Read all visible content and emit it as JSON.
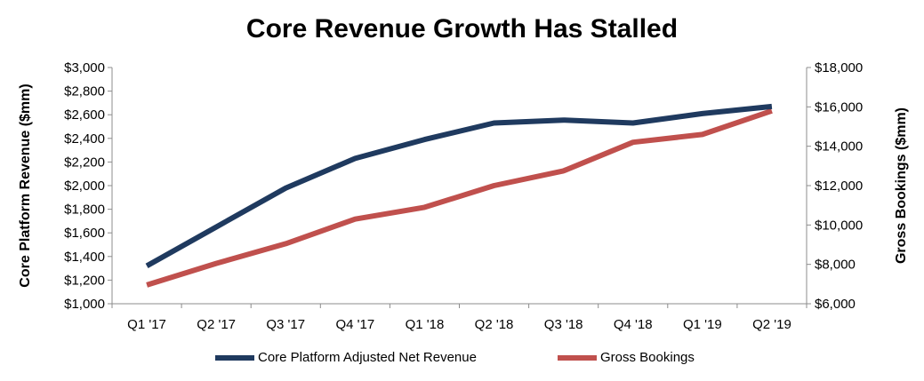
{
  "chart_data": {
    "type": "line",
    "title": "Core Revenue Growth Has Stalled",
    "categories": [
      "Q1 '17",
      "Q2 '17",
      "Q3 '17",
      "Q4 '17",
      "Q1 '18",
      "Q2 '18",
      "Q3 '18",
      "Q4 '18",
      "Q1 '19",
      "Q2 '19"
    ],
    "ylabel": "Core Platform Revenue ($mm)",
    "y2label": "Gross Bookings ($mm)",
    "ylim": [
      1000,
      3000
    ],
    "y2lim": [
      6000,
      18000
    ],
    "yticks": [
      "$1,000",
      "$1,200",
      "$1,400",
      "$1,600",
      "$1,800",
      "$2,000",
      "$2,200",
      "$2,400",
      "$2,600",
      "$2,800",
      "$3,000"
    ],
    "y2ticks": [
      "$6,000",
      "$8,000",
      "$10,000",
      "$12,000",
      "$14,000",
      "$16,000",
      "$18,000"
    ],
    "legend_position": "bottom",
    "grid": false,
    "series": [
      {
        "name": "Core Platform Adjusted Net Revenue",
        "axis": "left",
        "color": "#1f3a5f",
        "values": [
          1320,
          1650,
          1980,
          2230,
          2390,
          2530,
          2555,
          2530,
          2610,
          2670
        ]
      },
      {
        "name": "Gross Bookings",
        "axis": "right",
        "color": "#c0504d",
        "values": [
          6950,
          8050,
          9050,
          10300,
          10900,
          12000,
          12750,
          14200,
          14600,
          15800
        ]
      }
    ]
  }
}
